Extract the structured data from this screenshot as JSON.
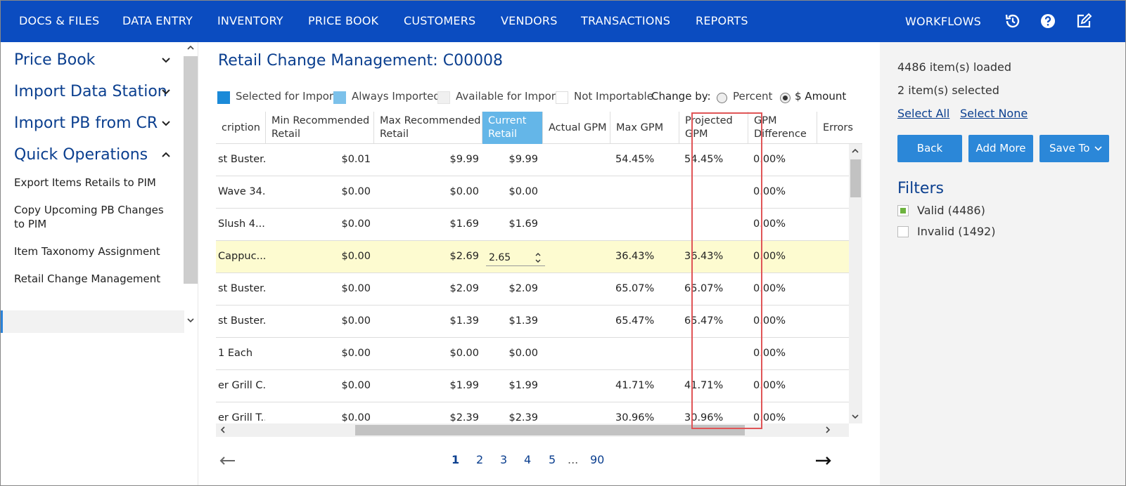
{
  "nav": {
    "items": [
      "DOCS & FILES",
      "DATA ENTRY",
      "INVENTORY",
      "PRICE BOOK",
      "CUSTOMERS",
      "VENDORS",
      "TRANSACTIONS",
      "REPORTS"
    ],
    "workflows": "WORKFLOWS",
    "icons": [
      "history-icon",
      "help-icon",
      "edit-icon"
    ]
  },
  "sidebar": {
    "sections": [
      "Price Book",
      "Import Data Station",
      "Import PB from CR",
      "Quick Operations"
    ],
    "sub_items": [
      "Export Items Retails to PIM",
      "Copy Upcoming PB Changes to PIM",
      "Item Taxonomy Assignment",
      "Retail Change Management"
    ],
    "active": "Retail Change Management"
  },
  "main": {
    "title": "Retail Change Management: C00008",
    "legend": {
      "selected": "Selected for Import",
      "always": "Always Imported",
      "available": "Available for Import",
      "not_importable": "Not Importable",
      "change_by": "Change by:",
      "percent": "Percent",
      "amount": "$ Amount",
      "selected_option": "$ Amount"
    },
    "columns": {
      "description": "cription",
      "min_rec_1": "Min Recommended",
      "min_rec_2": "Retail",
      "max_rec_1": "Max Recommended",
      "max_rec_2": "Retail",
      "current_1": "Current",
      "current_2": "Retail",
      "actual_gpm": "Actual GPM",
      "max_gpm": "Max GPM",
      "proj_gpm_1": "Projected",
      "proj_gpm_2": "GPM",
      "gpm_diff_1": "GPM",
      "gpm_diff_2": "Difference",
      "errors": "Errors"
    },
    "rows": [
      {
        "desc": "st Buster...",
        "min": "$0.01",
        "max": "$9.99",
        "cur": "$9.99",
        "actual": "",
        "maxgpm": "54.45%",
        "proj": "54.45%",
        "diff": "0.00%"
      },
      {
        "desc": "Wave 34...",
        "min": "$0.00",
        "max": "$0.00",
        "cur": "$0.00",
        "actual": "",
        "maxgpm": "",
        "proj": "",
        "diff": "0.00%"
      },
      {
        "desc": "Slush 4...",
        "min": "$0.00",
        "max": "$1.69",
        "cur": "$1.69",
        "actual": "",
        "maxgpm": "",
        "proj": "",
        "diff": "0.00%"
      },
      {
        "desc": "Cappuc...",
        "min": "$0.00",
        "max": "$2.69",
        "cur": "2.65",
        "actual": "",
        "maxgpm": "36.43%",
        "proj": "36.43%",
        "diff": "0.00%"
      },
      {
        "desc": "st Buster...",
        "min": "$0.00",
        "max": "$2.09",
        "cur": "$2.09",
        "actual": "",
        "maxgpm": "65.07%",
        "proj": "65.07%",
        "diff": "0.00%"
      },
      {
        "desc": "st Buster...",
        "min": "$0.00",
        "max": "$1.39",
        "cur": "$1.39",
        "actual": "",
        "maxgpm": "65.47%",
        "proj": "65.47%",
        "diff": "0.00%"
      },
      {
        "desc": "1 Each",
        "min": "$0.00",
        "max": "$0.00",
        "cur": "$0.00",
        "actual": "",
        "maxgpm": "",
        "proj": "",
        "diff": "0.00%"
      },
      {
        "desc": "er Grill C...",
        "min": "$0.00",
        "max": "$1.99",
        "cur": "$1.99",
        "actual": "",
        "maxgpm": "41.71%",
        "proj": "41.71%",
        "diff": "0.00%"
      },
      {
        "desc": "er Grill T...",
        "min": "$0.00",
        "max": "$2.39",
        "cur": "$2.39",
        "actual": "",
        "maxgpm": "30.96%",
        "proj": "30.96%",
        "diff": "0.00%"
      }
    ],
    "pager": [
      "1",
      "2",
      "3",
      "4",
      "5",
      "...",
      "90"
    ],
    "current_page": "1"
  },
  "right": {
    "loaded": "4486 item(s) loaded",
    "selected": "2 item(s) selected",
    "select_all": "Select All",
    "select_none": "Select None",
    "back": "Back",
    "add_more": "Add More",
    "save_to": "Save To",
    "filters_title": "Filters",
    "valid": "Valid (4486)",
    "invalid": "Invalid (1492)"
  },
  "colors": {
    "nav_bg": "#0b4cc0",
    "title": "#0b3f8f",
    "button": "#2b87d8",
    "current_header": "#64b6e8",
    "highlight_row": "#fdfbd0",
    "highlight_box": "#e05557",
    "valid_check": "#6db33f"
  }
}
